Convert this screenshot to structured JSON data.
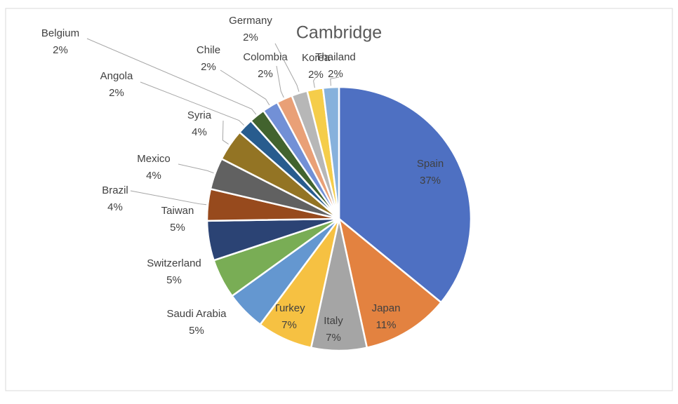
{
  "chart_data": {
    "type": "pie",
    "title": "Cambridge",
    "categories": [
      "Spain",
      "Japan",
      "Italy",
      "Turkey",
      "Saudi Arabia",
      "Switzerland",
      "Taiwan",
      "Brazil",
      "Mexico",
      "Syria",
      "Angola",
      "Belgium",
      "Chile",
      "Colombia",
      "Germany",
      "Korea",
      "Thailand"
    ],
    "values": [
      37,
      11,
      7,
      7,
      5,
      5,
      5,
      4,
      4,
      4,
      2,
      2,
      2,
      2,
      2,
      2,
      2
    ],
    "value_labels": [
      "37%",
      "11%",
      "7%",
      "7%",
      "5%",
      "5%",
      "5%",
      "4%",
      "4%",
      "4%",
      "2%",
      "2%",
      "2%",
      "2%",
      "2%",
      "2%",
      "2%"
    ],
    "colors": [
      "#4e70c2",
      "#e38240",
      "#a5a5a5",
      "#f6c142",
      "#6497d0",
      "#79ad55",
      "#2b4374",
      "#974a1d",
      "#616161",
      "#937424",
      "#285c8e",
      "#42632e",
      "#7290d6",
      "#e9a077",
      "#b7b7b7",
      "#f5cd4a",
      "#86b1dc"
    ]
  }
}
